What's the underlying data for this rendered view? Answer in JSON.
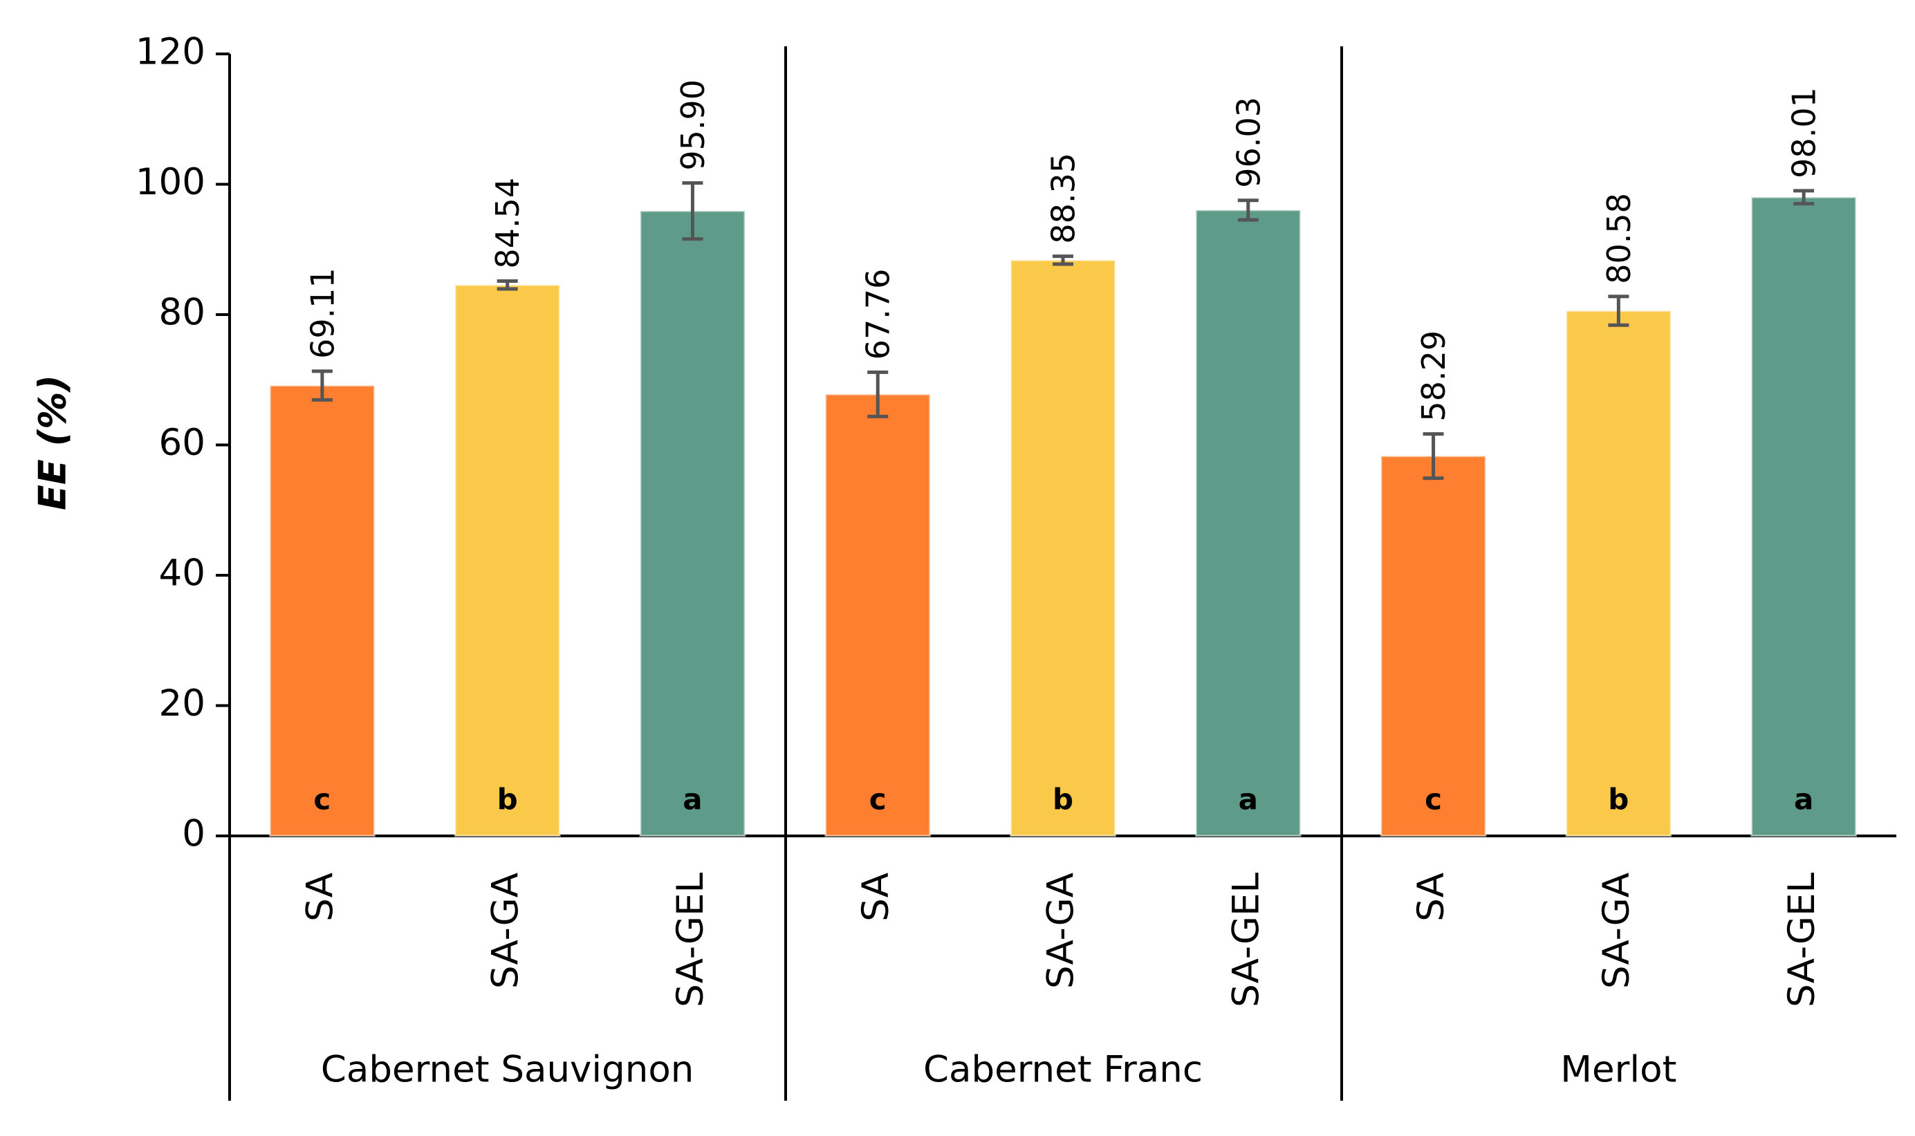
{
  "chart_data": {
    "type": "bar",
    "ylabel": "EE (%)",
    "categories": [
      "SA",
      "SA-GA",
      "SA-GEL"
    ],
    "colors": [
      "#fd7f2f",
      "#fbc94a",
      "#5f9b89"
    ],
    "series": [
      {
        "name": "Cabernet Sauvignon",
        "values": [
          69.11,
          84.54,
          95.9
        ],
        "value_labels": [
          "69.11",
          "84.54",
          "95.90"
        ],
        "errors": [
          2.2,
          0.6,
          4.3
        ],
        "letters": [
          "c",
          "b",
          "a"
        ]
      },
      {
        "name": "Cabernet Franc",
        "values": [
          67.76,
          88.35,
          96.03
        ],
        "value_labels": [
          "67.76",
          "88.35",
          "96.03"
        ],
        "errors": [
          3.4,
          0.6,
          1.5
        ],
        "letters": [
          "c",
          "b",
          "a"
        ]
      },
      {
        "name": "Merlot",
        "values": [
          58.29,
          80.58,
          98.01
        ],
        "value_labels": [
          "58.29",
          "80.58",
          "98.01"
        ],
        "errors": [
          3.4,
          2.2,
          1.0
        ],
        "letters": [
          "c",
          "b",
          "a"
        ]
      }
    ],
    "ylim": [
      0,
      120
    ],
    "yticks": [
      0,
      20,
      40,
      60,
      80,
      100,
      120
    ]
  }
}
